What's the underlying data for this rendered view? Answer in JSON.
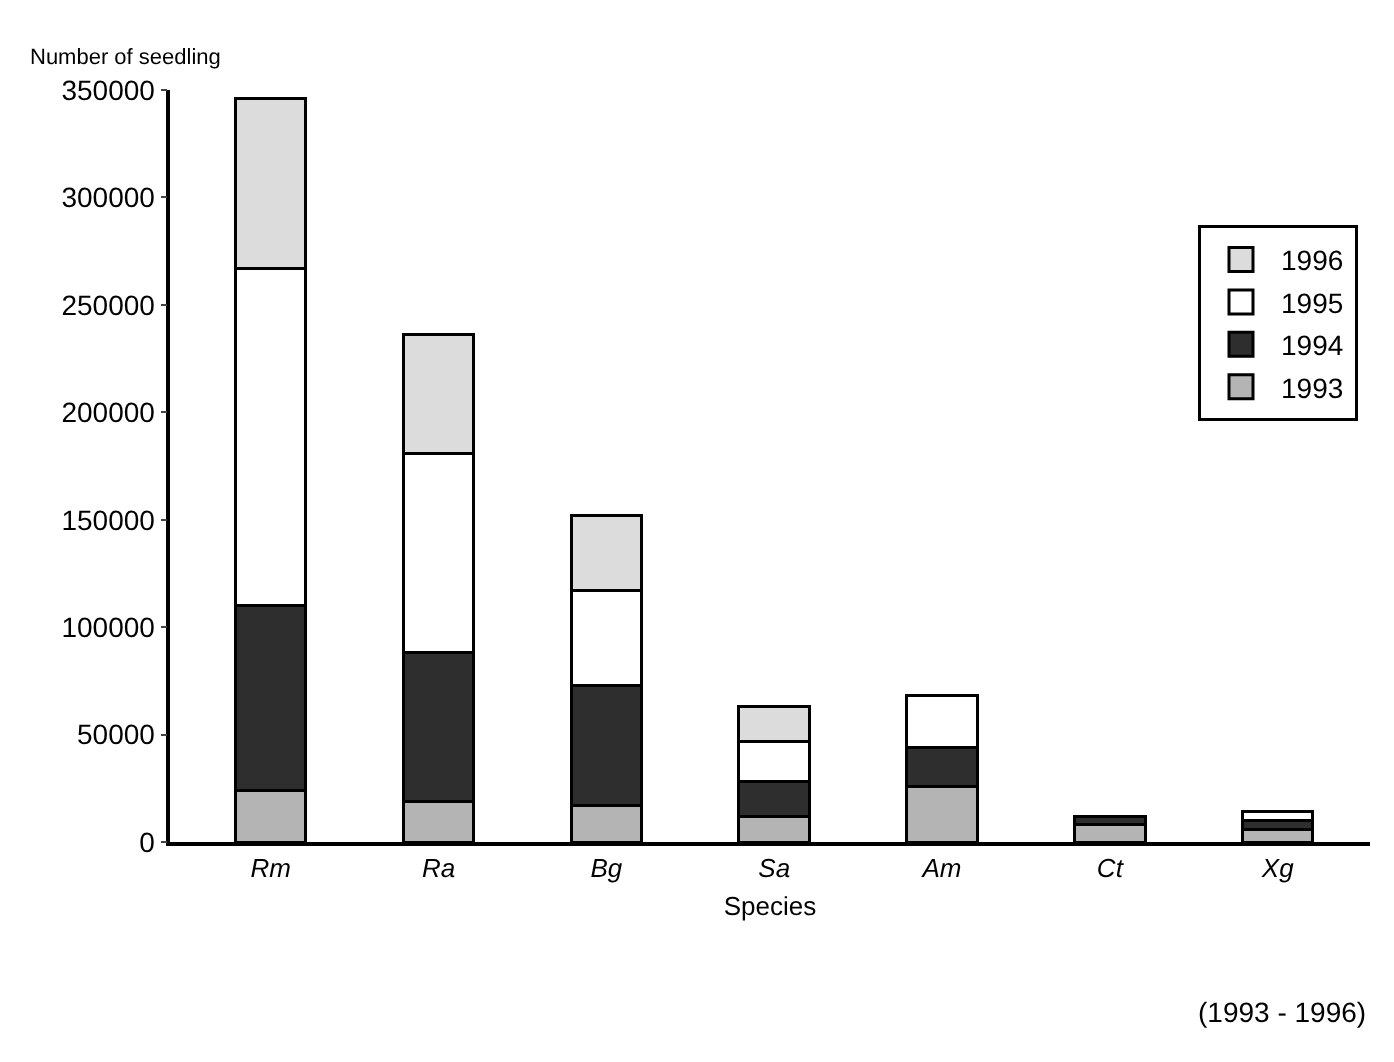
{
  "chart_data": {
    "type": "bar",
    "stacked": true,
    "xlabel": "Species",
    "ylabel": "Number of seedling",
    "categories": [
      "Rm",
      "Ra",
      "Bg",
      "Sa",
      "Am",
      "Ct",
      "Xg"
    ],
    "series": [
      {
        "name": "1993",
        "color": "#b4b4b4",
        "values": [
          24000,
          19000,
          17000,
          12000,
          26000,
          8000,
          6000
        ]
      },
      {
        "name": "1994",
        "color": "#2e2e2e",
        "values": [
          86000,
          69000,
          56000,
          16000,
          18000,
          4000,
          4000
        ]
      },
      {
        "name": "1995",
        "color": "#ffffff",
        "values": [
          157000,
          93000,
          44000,
          19000,
          24000,
          null,
          4000
        ]
      },
      {
        "name": "1996",
        "color": "#dcdcdc",
        "values": [
          79000,
          55000,
          35000,
          16000,
          null,
          null,
          null
        ]
      }
    ],
    "ylim": [
      0,
      350000
    ],
    "yticks": [
      0,
      50000,
      100000,
      150000,
      200000,
      250000,
      300000,
      350000
    ],
    "legend": "top right",
    "annotations": [
      "(1993 - 1996)"
    ]
  }
}
